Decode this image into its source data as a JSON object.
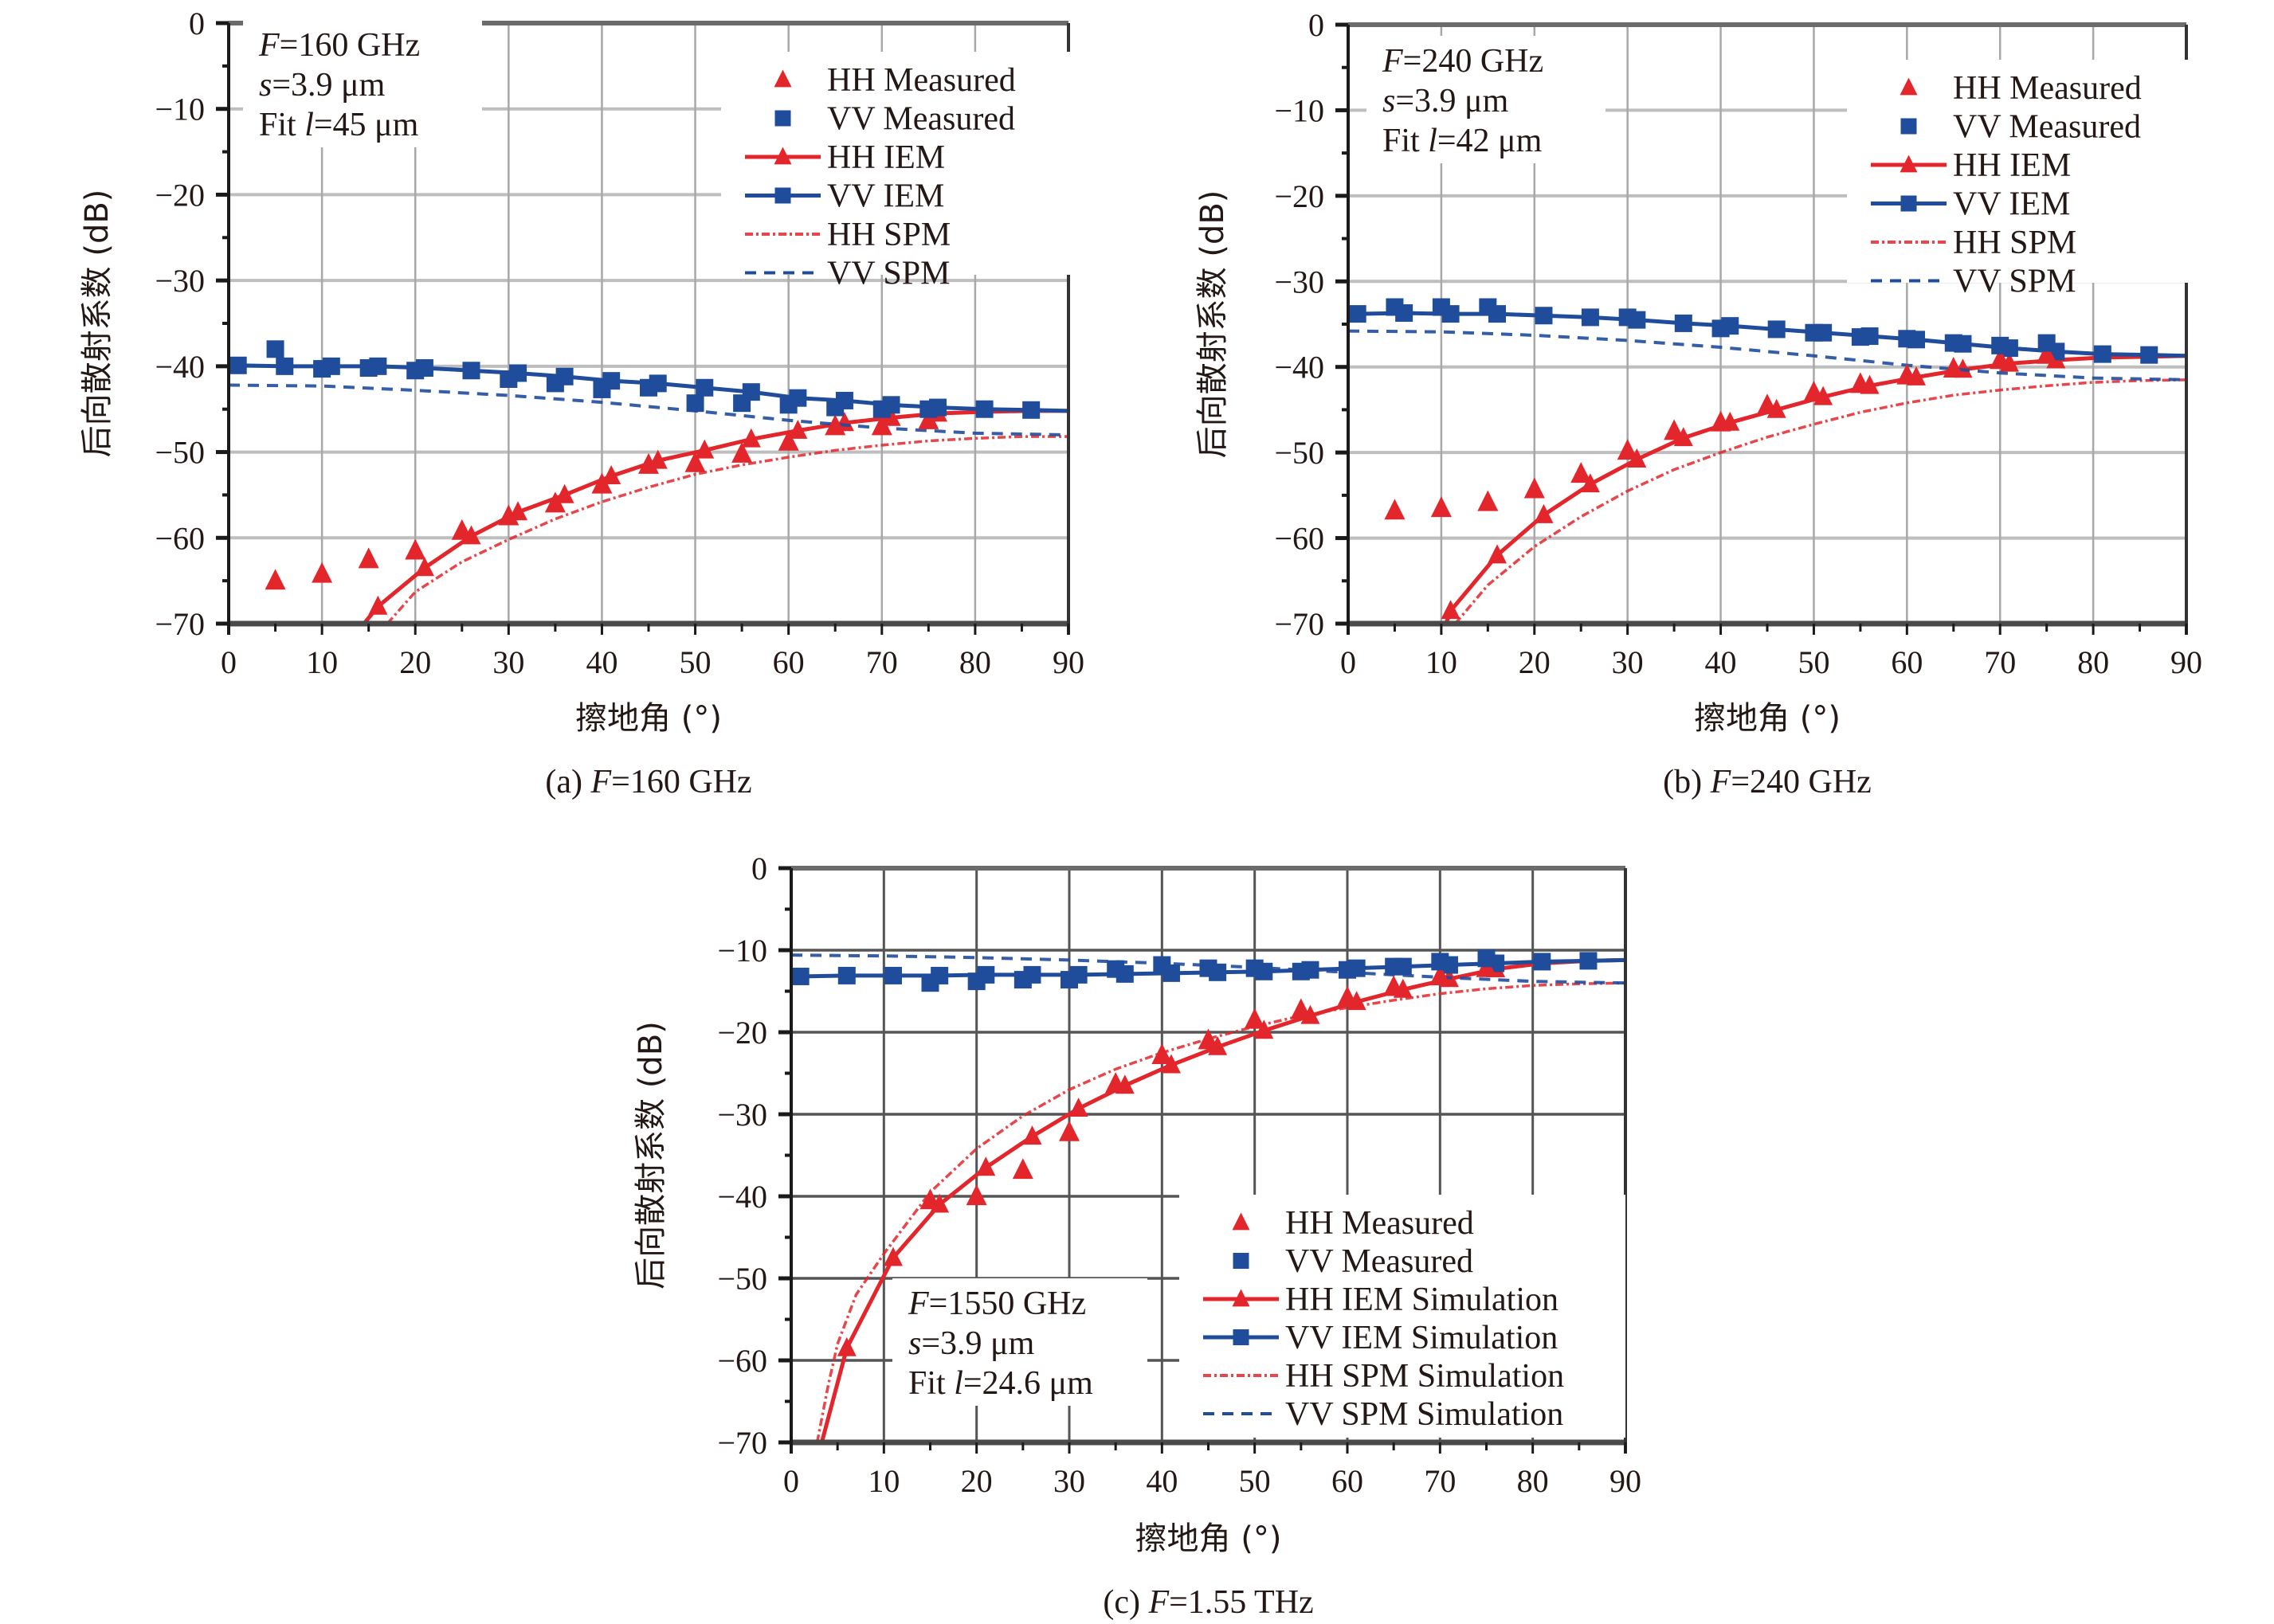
{
  "colors": {
    "hh": "#e3262b",
    "vv": "#1f4d9c",
    "grid_light": "#a8a8a8",
    "grid_dark": "#555555",
    "axis": "#1a1a1a",
    "text": "#231815"
  },
  "chart_data": [
    {
      "id": "a",
      "type": "line",
      "caption_prefix": "(a) ",
      "caption_var": "F",
      "caption_rest": "=160 GHz",
      "xlabel": "擦地角 (°)",
      "ylabel": "后向散射系数 (dB)",
      "xlim": [
        0,
        90
      ],
      "ylim": [
        -70,
        0
      ],
      "xticks": [
        0,
        10,
        20,
        30,
        40,
        50,
        60,
        70,
        80,
        90
      ],
      "yticks": [
        0,
        -10,
        -20,
        -30,
        -40,
        -50,
        -60,
        -70
      ],
      "xtick_labels": [
        "0",
        "10",
        "20",
        "30",
        "40",
        "50",
        "60",
        "70",
        "80",
        "90"
      ],
      "ytick_labels": [
        "0",
        "−10",
        "−20",
        "−30",
        "−40",
        "−50",
        "−60",
        "−70"
      ],
      "grid": true,
      "grid_style": "light",
      "legend_position": "top-right",
      "annotation_position": "top-left",
      "annotation": [
        {
          "var": "F",
          "rest": "=160 GHz"
        },
        {
          "var": "s",
          "rest": "=3.9 μm"
        },
        {
          "pre": "Fit ",
          "var": "l",
          "rest": "=45 μm"
        }
      ],
      "series": [
        {
          "name": "HH Measured",
          "style": "marker",
          "marker": "triangle",
          "color": "hh",
          "x": [
            5,
            10,
            15,
            20,
            25,
            30,
            35,
            40,
            45,
            50,
            55,
            60,
            65,
            70,
            75
          ],
          "y": [
            -65,
            -64.2,
            -62.5,
            -61.5,
            -59.2,
            -57.5,
            -56,
            -53.8,
            -51.5,
            -51.3,
            -50.2,
            -48.8,
            -47,
            -47,
            -46.3
          ]
        },
        {
          "name": "VV Measured",
          "style": "marker",
          "marker": "square",
          "color": "vv",
          "x": [
            5,
            10,
            15,
            20,
            30,
            35,
            40,
            45,
            50,
            55,
            60,
            65,
            70,
            75
          ],
          "y": [
            -38,
            -40.3,
            -40.2,
            -40.5,
            -41.5,
            -42,
            -42.7,
            -42.5,
            -44.3,
            -44.3,
            -44.5,
            -44.8,
            -45,
            -45
          ]
        },
        {
          "name": "HH IEM",
          "style": "line-marker",
          "marker": "triangle",
          "color": "hh",
          "x": [
            14.5,
            16,
            21,
            26,
            31,
            36,
            41,
            46,
            51,
            56,
            61,
            66,
            71,
            76,
            81,
            86,
            90
          ],
          "y": [
            -70,
            -68,
            -63.5,
            -59.8,
            -57,
            -55,
            -52.8,
            -51,
            -49.8,
            -48.5,
            -47.5,
            -46.6,
            -46,
            -45.5,
            -45.3,
            -45.2,
            -45.2
          ],
          "marker_x": [
            16,
            21,
            26,
            31,
            36,
            41,
            46,
            51,
            56,
            61,
            66,
            71,
            76
          ]
        },
        {
          "name": "VV IEM",
          "style": "line-marker",
          "marker": "square",
          "color": "vv",
          "x": [
            1,
            6,
            11,
            16,
            21,
            26,
            31,
            36,
            41,
            46,
            51,
            56,
            61,
            66,
            71,
            76,
            81,
            86,
            90
          ],
          "y": [
            -39.9,
            -40,
            -40,
            -40,
            -40.2,
            -40.5,
            -40.8,
            -41.2,
            -41.7,
            -42,
            -42.5,
            -43,
            -43.7,
            -44,
            -44.5,
            -44.8,
            -45,
            -45.1,
            -45.2
          ],
          "marker_x": [
            1,
            6,
            11,
            16,
            21,
            26,
            31,
            36,
            41,
            46,
            51,
            56,
            61,
            66,
            71,
            76,
            81,
            86
          ]
        },
        {
          "name": "HH SPM",
          "style": "dashdot",
          "color": "hh",
          "x": [
            17,
            20,
            25,
            30,
            35,
            40,
            45,
            50,
            55,
            60,
            65,
            70,
            75,
            80,
            85,
            90
          ],
          "y": [
            -70,
            -66.3,
            -62.8,
            -60.2,
            -57.8,
            -55.8,
            -54.1,
            -52.6,
            -51.5,
            -50.6,
            -49.8,
            -49.2,
            -48.7,
            -48.4,
            -48.2,
            -48.2
          ]
        },
        {
          "name": "VV SPM",
          "style": "dashed",
          "color": "vv",
          "x": [
            0,
            10,
            20,
            30,
            40,
            50,
            60,
            70,
            80,
            90
          ],
          "y": [
            -42.2,
            -42.3,
            -42.8,
            -43.4,
            -44.2,
            -45.2,
            -46.3,
            -47.2,
            -47.8,
            -48
          ]
        }
      ]
    },
    {
      "id": "b",
      "type": "line",
      "caption_prefix": "(b) ",
      "caption_var": "F",
      "caption_rest": "=240 GHz",
      "xlabel": "擦地角 (°)",
      "ylabel": "后向散射系数 (dB)",
      "xlim": [
        0,
        90
      ],
      "ylim": [
        -70,
        0
      ],
      "xticks": [
        0,
        10,
        20,
        30,
        40,
        50,
        60,
        70,
        80,
        90
      ],
      "yticks": [
        0,
        -10,
        -20,
        -30,
        -40,
        -50,
        -60,
        -70
      ],
      "xtick_labels": [
        "0",
        "10",
        "20",
        "30",
        "40",
        "50",
        "60",
        "70",
        "80",
        "90"
      ],
      "ytick_labels": [
        "0",
        "−10",
        "−20",
        "−30",
        "−40",
        "−50",
        "−60",
        "−70"
      ],
      "grid": true,
      "grid_style": "light",
      "legend_position": "top-right",
      "annotation_position": "top-left",
      "annotation": [
        {
          "var": "F",
          "rest": "=240 GHz"
        },
        {
          "var": "s",
          "rest": "=3.9 μm"
        },
        {
          "pre": "Fit ",
          "var": "l",
          "rest": "=42 μm"
        }
      ],
      "series": [
        {
          "name": "HH Measured",
          "style": "marker",
          "marker": "triangle",
          "color": "hh",
          "x": [
            5,
            10,
            15,
            20,
            25,
            30,
            35,
            40,
            45,
            50,
            55,
            60,
            65,
            70,
            75
          ],
          "y": [
            -56.8,
            -56.5,
            -55.8,
            -54.3,
            -52.5,
            -49.8,
            -47.5,
            -46.5,
            -44.5,
            -43,
            -42,
            -41,
            -40.2,
            -39.2,
            -38.6
          ]
        },
        {
          "name": "VV Measured",
          "style": "marker",
          "marker": "square",
          "color": "vv",
          "x": [
            5,
            10,
            15,
            30,
            40,
            50,
            55,
            60,
            65,
            70,
            75
          ],
          "y": [
            -33,
            -33,
            -33,
            -34.2,
            -35.5,
            -36,
            -36.5,
            -36.7,
            -37.2,
            -37.5,
            -37.2
          ]
        },
        {
          "name": "HH IEM",
          "style": "line-marker",
          "marker": "triangle",
          "color": "hh",
          "x": [
            10.5,
            11,
            16,
            21,
            26,
            31,
            36,
            41,
            46,
            51,
            56,
            61,
            66,
            71,
            76,
            81,
            86,
            90
          ],
          "y": [
            -70,
            -68.5,
            -62,
            -57.3,
            -53.7,
            -50.8,
            -48.3,
            -46.5,
            -45,
            -43.5,
            -42.2,
            -41.2,
            -40.3,
            -39.6,
            -39.2,
            -38.9,
            -38.8,
            -38.7
          ],
          "marker_x": [
            11,
            16,
            21,
            26,
            31,
            36,
            41,
            46,
            51,
            56,
            61,
            66,
            71,
            76
          ]
        },
        {
          "name": "VV IEM",
          "style": "line-marker",
          "marker": "square",
          "color": "vv",
          "x": [
            1,
            6,
            11,
            16,
            21,
            26,
            31,
            36,
            41,
            46,
            51,
            56,
            61,
            66,
            71,
            76,
            81,
            86,
            90
          ],
          "y": [
            -33.8,
            -33.7,
            -33.8,
            -33.8,
            -34,
            -34.2,
            -34.5,
            -34.9,
            -35.2,
            -35.6,
            -36,
            -36.4,
            -36.8,
            -37.3,
            -37.8,
            -38.2,
            -38.5,
            -38.6,
            -38.7
          ],
          "marker_x": [
            1,
            6,
            11,
            16,
            21,
            26,
            31,
            36,
            41,
            46,
            51,
            56,
            61,
            66,
            71,
            76,
            81,
            86
          ]
        },
        {
          "name": "HH SPM",
          "style": "dashdot",
          "color": "hh",
          "x": [
            11.5,
            15,
            20,
            25,
            30,
            35,
            40,
            45,
            50,
            55,
            60,
            65,
            70,
            75,
            80,
            85,
            90
          ],
          "y": [
            -70,
            -65.5,
            -61,
            -57.5,
            -54.5,
            -52,
            -50,
            -48.2,
            -46.7,
            -45.3,
            -44.2,
            -43.3,
            -42.7,
            -42.2,
            -41.8,
            -41.6,
            -41.5
          ]
        },
        {
          "name": "VV SPM",
          "style": "dashed",
          "color": "vv",
          "x": [
            0,
            10,
            20,
            30,
            40,
            50,
            60,
            70,
            80,
            90
          ],
          "y": [
            -35.8,
            -35.9,
            -36.3,
            -36.9,
            -37.7,
            -38.7,
            -39.8,
            -40.7,
            -41.3,
            -41.5
          ]
        }
      ]
    },
    {
      "id": "c",
      "type": "line",
      "caption_prefix": "(c) ",
      "caption_var": "F",
      "caption_rest": "=1.55 THz",
      "xlabel": "擦地角 (°)",
      "ylabel": "后向散射系数 (dB)",
      "xlim": [
        0,
        90
      ],
      "ylim": [
        -70,
        0
      ],
      "xticks": [
        0,
        10,
        20,
        30,
        40,
        50,
        60,
        70,
        80,
        90
      ],
      "yticks": [
        0,
        -10,
        -20,
        -30,
        -40,
        -50,
        -60,
        -70
      ],
      "xtick_labels": [
        "0",
        "10",
        "20",
        "30",
        "40",
        "50",
        "60",
        "70",
        "80",
        "90"
      ],
      "ytick_labels": [
        "0",
        "−10",
        "−20",
        "−30",
        "−40",
        "−50",
        "−60",
        "−70"
      ],
      "grid": true,
      "grid_style": "dark",
      "legend_position": "bottom-right",
      "annotation_position": "bottom-left",
      "annotation": [
        {
          "var": "F",
          "rest": "=1550 GHz"
        },
        {
          "var": "s",
          "rest": "=3.9 μm"
        },
        {
          "pre": "Fit ",
          "var": "l",
          "rest": "=24.6 μm"
        }
      ],
      "series": [
        {
          "name": "HH Measured",
          "style": "marker",
          "marker": "triangle",
          "color": "hh",
          "x": [
            15,
            20,
            25,
            30,
            35,
            40,
            45,
            50,
            55,
            60,
            65,
            70,
            75
          ],
          "y": [
            -40.5,
            -40,
            -36.8,
            -32.2,
            -26.3,
            -22.8,
            -21,
            -18.5,
            -17.3,
            -15.8,
            -14.5,
            -13.2,
            -12.2
          ]
        },
        {
          "name": "VV Measured",
          "style": "marker",
          "marker": "square",
          "color": "vv",
          "x": [
            15,
            20,
            25,
            30,
            35,
            40,
            45,
            50,
            55,
            60,
            65,
            70,
            75
          ],
          "y": [
            -14,
            -13.8,
            -13.6,
            -13.6,
            -12.3,
            -11.8,
            -12.2,
            -12.2,
            -12.6,
            -12.4,
            -12,
            -11.4,
            -11
          ]
        },
        {
          "name": "HH IEM Simulation",
          "style": "line-marker",
          "marker": "triangle",
          "color": "hh",
          "x": [
            3.3,
            6,
            11,
            16,
            21,
            26,
            31,
            36,
            41,
            46,
            51,
            56,
            61,
            66,
            71,
            76,
            81,
            86,
            90
          ],
          "y": [
            -70,
            -58.5,
            -47.5,
            -41,
            -36.5,
            -32.7,
            -29.3,
            -26.5,
            -24,
            -21.8,
            -19.8,
            -18,
            -16.3,
            -14.8,
            -13.5,
            -12.3,
            -11.6,
            -11.3,
            -11.2
          ],
          "marker_x": [
            6,
            11,
            16,
            21,
            26,
            31,
            36,
            41,
            46,
            51,
            56,
            61,
            66,
            71,
            76
          ]
        },
        {
          "name": "VV IEM Simulation",
          "style": "line-marker",
          "marker": "square",
          "color": "vv",
          "x": [
            1,
            6,
            11,
            16,
            21,
            26,
            31,
            36,
            41,
            46,
            51,
            56,
            61,
            66,
            71,
            76,
            81,
            86,
            90
          ],
          "y": [
            -13.2,
            -13.1,
            -13.1,
            -13.1,
            -13,
            -13,
            -13,
            -12.9,
            -12.8,
            -12.7,
            -12.6,
            -12.4,
            -12.2,
            -12,
            -11.8,
            -11.6,
            -11.4,
            -11.3,
            -11.2
          ],
          "marker_x": [
            1,
            6,
            11,
            16,
            21,
            26,
            31,
            36,
            41,
            46,
            51,
            56,
            61,
            66,
            71,
            76,
            81,
            86
          ]
        },
        {
          "name": "HH SPM Simulation",
          "style": "dashdot",
          "color": "hh",
          "x": [
            2.8,
            4,
            5,
            7,
            10,
            15,
            20,
            25,
            30,
            35,
            40,
            45,
            50,
            55,
            60,
            65,
            70,
            75,
            80,
            85,
            90
          ],
          "y": [
            -70,
            -63,
            -58,
            -52,
            -47,
            -39.5,
            -34.2,
            -30.2,
            -27,
            -24.5,
            -22.5,
            -20.8,
            -19.3,
            -18,
            -17,
            -16.1,
            -15.3,
            -14.7,
            -14.3,
            -14.1,
            -14
          ]
        },
        {
          "name": "VV SPM Simulation",
          "style": "dashed",
          "color": "vv",
          "x": [
            0,
            10,
            20,
            30,
            40,
            50,
            60,
            70,
            80,
            90
          ],
          "y": [
            -10.6,
            -10.7,
            -10.9,
            -11.2,
            -11.6,
            -12.1,
            -12.7,
            -13.3,
            -13.8,
            -14
          ]
        }
      ]
    }
  ]
}
